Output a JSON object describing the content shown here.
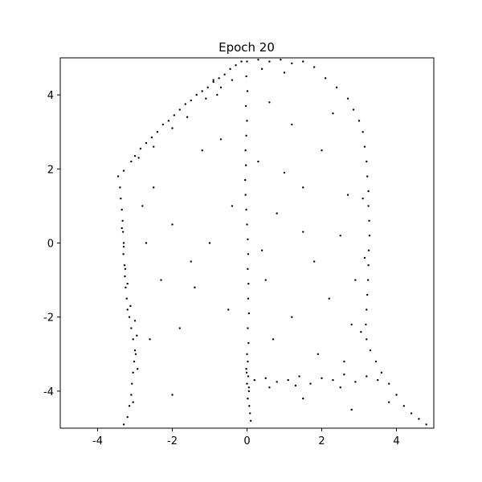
{
  "chart_data": {
    "type": "scatter",
    "title": "Epoch 20",
    "color": "#000000",
    "xlim": [
      -5,
      5
    ],
    "ylim": [
      -5,
      5
    ],
    "xticks": [
      -4,
      -2,
      0,
      2,
      4
    ],
    "yticks": [
      -4,
      -2,
      0,
      2,
      4
    ],
    "x": [
      -3.45,
      -3.4,
      -3.38,
      -3.35,
      -3.33,
      -3.32,
      -3.3,
      -3.31,
      -3.28,
      -3.27,
      -3.25,
      -3.22,
      -3.2,
      -3.15,
      -3.1,
      -3.05,
      -3.0,
      -3.02,
      -3.05,
      -3.08,
      -3.1,
      -3.15,
      -3.2,
      -3.3,
      -3.35,
      -3.3,
      -3.26,
      -3.2,
      -2.95,
      -2.98,
      -3.12,
      -3.0,
      -2.93,
      -3.05,
      -3.3,
      -3.1,
      -3.0,
      -2.85,
      -2.7,
      -2.55,
      -2.4,
      -2.25,
      -2.1,
      -1.95,
      -1.8,
      -1.65,
      -1.5,
      -1.35,
      -1.2,
      -1.05,
      -0.9,
      -0.75,
      -0.6,
      -0.45,
      -0.3,
      -0.15,
      -2.9,
      -2.5,
      -2.0,
      -1.6,
      -1.1,
      -0.7,
      -0.4,
      -0.8,
      0.0,
      -0.02,
      0.01,
      -0.03,
      0.0,
      -0.02,
      -0.04,
      -0.03,
      -0.05,
      -0.04,
      -0.02,
      0.0,
      0.02,
      0.03,
      0.02,
      0.04,
      0.03,
      0.05,
      0.02,
      0.04,
      0.0,
      0.02,
      -0.02,
      0.03,
      0.0,
      0.05,
      0.02,
      0.06,
      0.08,
      0.1,
      0.05,
      -0.01,
      0.3,
      0.6,
      0.9,
      1.2,
      1.5,
      1.8,
      2.1,
      2.4,
      2.7,
      2.85,
      0.4,
      1.0,
      3.0,
      3.1,
      3.15,
      3.2,
      3.22,
      3.25,
      3.25,
      3.27,
      3.28,
      3.26,
      3.25,
      3.24,
      3.22,
      3.2,
      3.18,
      3.2,
      3.3,
      3.45,
      3.6,
      3.8,
      4.0,
      4.2,
      4.4,
      4.6,
      4.8,
      3.15,
      3.1,
      3.05,
      0.2,
      0.5,
      0.8,
      1.1,
      1.4,
      1.7,
      2.0,
      2.3,
      2.6,
      2.9,
      3.2,
      3.5,
      0.6,
      1.3,
      2.5,
      -2.5,
      -2.0,
      -1.5,
      -1.0,
      -2.3,
      -1.4,
      -0.5,
      -2.6,
      -1.8,
      -2.0,
      -1.2,
      -0.7,
      -2.7,
      -0.4,
      0.6,
      1.2,
      2.0,
      1.5,
      0.8,
      2.5,
      1.8,
      0.5,
      2.2,
      1.2,
      2.8,
      0.7,
      1.9,
      2.6,
      1.5,
      2.8,
      3.8,
      2.3,
      1.0,
      2.7,
      0.4,
      1.5,
      2.9,
      0.3,
      -2.8,
      -0.9
    ],
    "values": [
      1.8,
      1.5,
      1.2,
      0.9,
      0.6,
      0.3,
      0.0,
      -0.3,
      -0.6,
      -0.9,
      -1.2,
      -1.5,
      -1.8,
      -2.0,
      -2.3,
      -2.6,
      -2.9,
      -3.2,
      -3.5,
      -3.8,
      -4.1,
      -4.4,
      -4.7,
      -4.9,
      0.4,
      -0.1,
      -0.7,
      -1.1,
      -2.5,
      -3.0,
      -1.7,
      -2.1,
      -3.4,
      -4.3,
      1.95,
      2.2,
      2.35,
      2.55,
      2.7,
      2.85,
      3.0,
      3.2,
      3.3,
      3.45,
      3.6,
      3.75,
      3.85,
      4.0,
      4.1,
      4.2,
      4.35,
      4.45,
      4.55,
      4.7,
      4.8,
      4.9,
      2.3,
      2.6,
      3.1,
      3.4,
      3.9,
      4.2,
      4.4,
      4.0,
      4.9,
      4.5,
      4.1,
      3.7,
      3.3,
      2.9,
      2.5,
      2.1,
      1.7,
      1.3,
      0.9,
      0.5,
      0.1,
      -0.3,
      -0.7,
      -1.1,
      -1.5,
      -1.9,
      -2.3,
      -2.7,
      -3.0,
      -3.2,
      -3.4,
      -3.6,
      -3.8,
      -4.0,
      -4.2,
      -4.4,
      -4.6,
      -4.8,
      -3.9,
      -3.5,
      4.95,
      4.9,
      4.95,
      4.85,
      4.9,
      4.75,
      4.45,
      4.2,
      3.9,
      3.6,
      4.7,
      4.6,
      3.3,
      3.0,
      2.6,
      2.2,
      1.8,
      1.4,
      1.0,
      0.6,
      0.2,
      -0.2,
      -0.6,
      -1.0,
      -1.4,
      -1.8,
      -2.2,
      -2.6,
      -2.9,
      -3.2,
      -3.5,
      -3.8,
      -4.1,
      -4.4,
      -4.6,
      -4.75,
      -4.9,
      -0.4,
      1.2,
      -2.4,
      -3.7,
      -3.65,
      -3.75,
      -3.7,
      -3.6,
      -3.8,
      -3.65,
      -3.7,
      -3.55,
      -3.75,
      -3.6,
      -3.7,
      -3.9,
      -3.85,
      -3.9,
      1.5,
      0.5,
      -0.5,
      0.0,
      -1.0,
      -1.2,
      -1.8,
      -2.6,
      -2.3,
      -4.1,
      2.5,
      2.8,
      0.0,
      1.0,
      3.8,
      3.2,
      2.5,
      1.5,
      0.8,
      0.2,
      -0.5,
      -1.0,
      -1.5,
      -2.0,
      -2.2,
      -2.6,
      -3.0,
      -3.2,
      -4.2,
      -4.5,
      -4.3,
      3.5,
      1.9,
      1.3,
      -0.2,
      0.3,
      -1.0,
      2.2,
      1.0,
      4.4
    ]
  }
}
